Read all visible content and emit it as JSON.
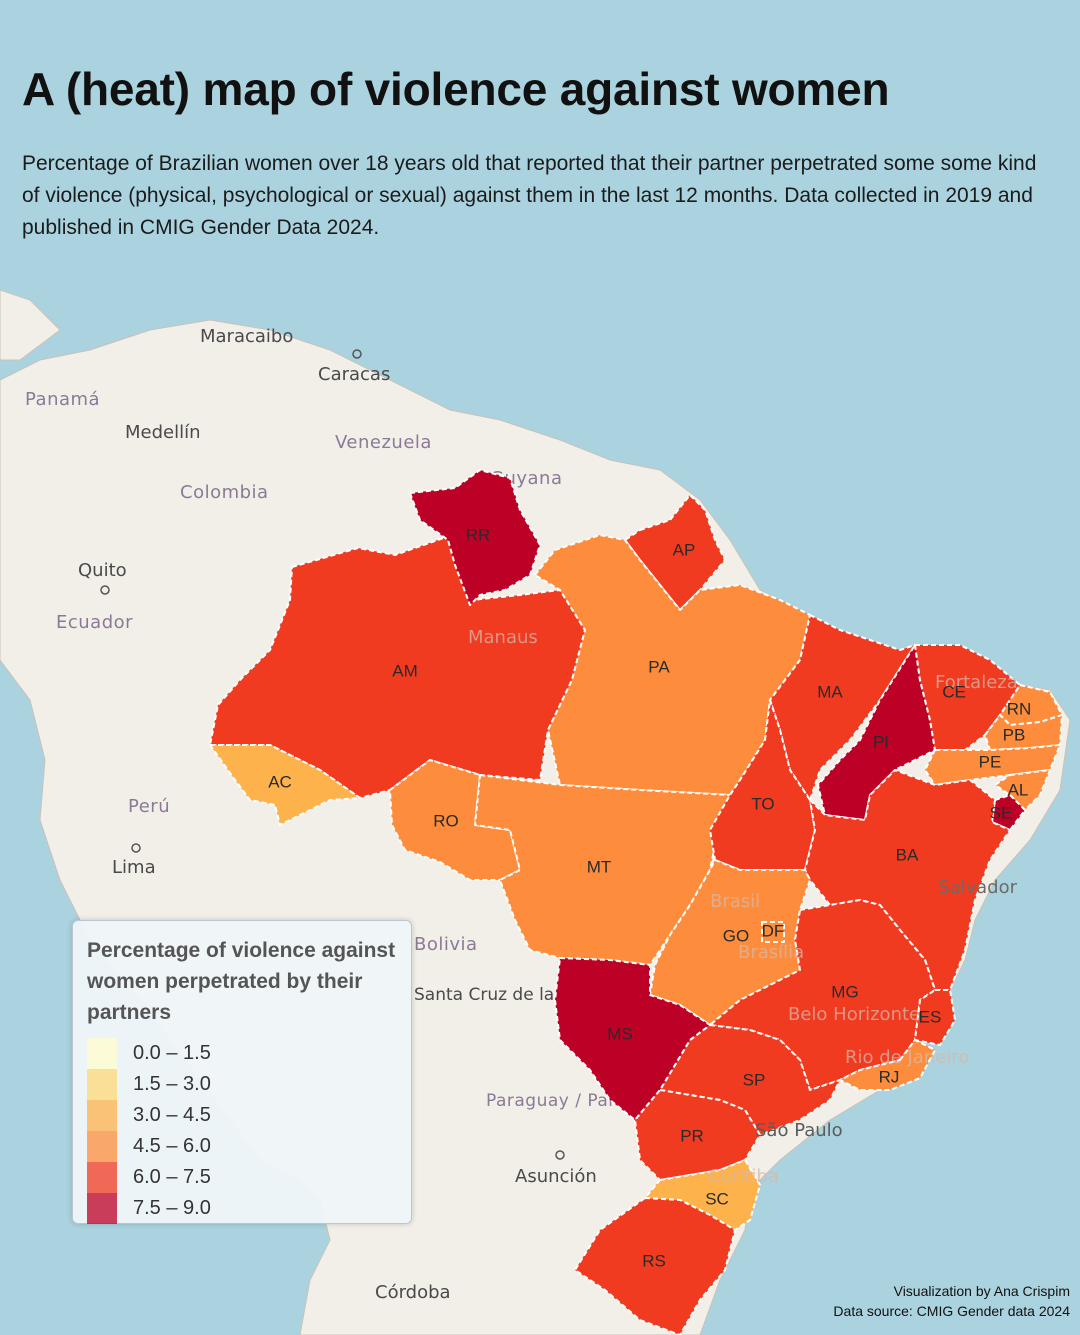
{
  "header": {
    "title": "A (heat) map of violence against women",
    "subtitle": "Percentage of Brazilian women over 18 years old that reported that their partner perpetrated some some kind of violence (physical, psychological or sexual) against them in the last 12 months. Data collected in 2019 and published in CMIG Gender Data 2024."
  },
  "colors": {
    "ocean": "#aad3df",
    "land": "#f2efe9",
    "bin_0": "#ffffcc",
    "bin_1": "#fed976",
    "bin_2": "#feb24c",
    "bin_3": "#fd8d3c",
    "bin_4": "#f03b20",
    "bin_5": "#bd0026"
  },
  "legend": {
    "title": "Percentage of violence against women perpetrated by their partners",
    "items": [
      {
        "label": "0.0 – 1.5",
        "color": "#ffffcc"
      },
      {
        "label": "1.5 – 3.0",
        "color": "#fed976"
      },
      {
        "label": "3.0 – 4.5",
        "color": "#feb24c"
      },
      {
        "label": "4.5 – 6.0",
        "color": "#fd8d3c"
      },
      {
        "label": "6.0 – 7.5",
        "color": "#f03b20"
      },
      {
        "label": "7.5 – 9.0",
        "color": "#bd0026"
      }
    ]
  },
  "states": {
    "RR": {
      "label": "RR",
      "color": "#bd0026"
    },
    "AP": {
      "label": "AP",
      "color": "#f03b20"
    },
    "AM": {
      "label": "AM",
      "color": "#f03b20"
    },
    "PA": {
      "label": "PA",
      "color": "#fd8d3c"
    },
    "MA": {
      "label": "MA",
      "color": "#f03b20"
    },
    "CE": {
      "label": "CE",
      "color": "#f03b20"
    },
    "RN": {
      "label": "RN",
      "color": "#fd8d3c"
    },
    "PB": {
      "label": "PB",
      "color": "#fd8d3c"
    },
    "PE": {
      "label": "PE",
      "color": "#fd8d3c"
    },
    "AL": {
      "label": "AL",
      "color": "#fd8d3c"
    },
    "SE": {
      "label": "SE",
      "color": "#bd0026"
    },
    "PI": {
      "label": "PI",
      "color": "#bd0026"
    },
    "AC": {
      "label": "AC",
      "color": "#feb24c"
    },
    "RO": {
      "label": "RO",
      "color": "#fd8d3c"
    },
    "MT": {
      "label": "MT",
      "color": "#fd8d3c"
    },
    "TO": {
      "label": "TO",
      "color": "#f03b20"
    },
    "BA": {
      "label": "BA",
      "color": "#f03b20"
    },
    "GO": {
      "label": "GO",
      "color": "#fd8d3c"
    },
    "DF": {
      "label": "DF",
      "color": "#fd8d3c"
    },
    "MG": {
      "label": "MG",
      "color": "#f03b20"
    },
    "ES": {
      "label": "ES",
      "color": "#f03b20"
    },
    "MS": {
      "label": "MS",
      "color": "#bd0026"
    },
    "SP": {
      "label": "SP",
      "color": "#f03b20"
    },
    "RJ": {
      "label": "RJ",
      "color": "#fd8d3c"
    },
    "PR": {
      "label": "PR",
      "color": "#f03b20"
    },
    "SC": {
      "label": "SC",
      "color": "#feb24c"
    },
    "RS": {
      "label": "RS",
      "color": "#f03b20"
    }
  },
  "basemap_labels": {
    "maracaibo": "Maracaibo",
    "caracas": "Caracas",
    "panama": "Panamá",
    "medellin": "Medellín",
    "venezuela": "Venezuela",
    "colombia": "Colombia",
    "guyana": "Guyana",
    "quito": "Quito",
    "ecuador": "Ecuador",
    "manaus": "Manaus",
    "fortaleza": "Fortaleza",
    "peru": "Perú",
    "lima": "Lima",
    "salvador": "Salvador",
    "brasil": "Brasil",
    "brasilia": "Brasília",
    "bolivia": "Bolivia",
    "santa_cruz": "Santa Cruz de la Sierra",
    "belo_horizonte": "Belo Horizonte",
    "rio": "Rio de Janeiro",
    "paraguay": "Paraguay / Paraguái",
    "sao_paulo": "São Paulo",
    "curitiba": "Curitiba",
    "asuncion": "Asunción",
    "cordoba": "Córdoba"
  },
  "credits": {
    "author": "Visualization by Ana Crispim",
    "source": "Data source: CMIG Gender data 2024"
  }
}
